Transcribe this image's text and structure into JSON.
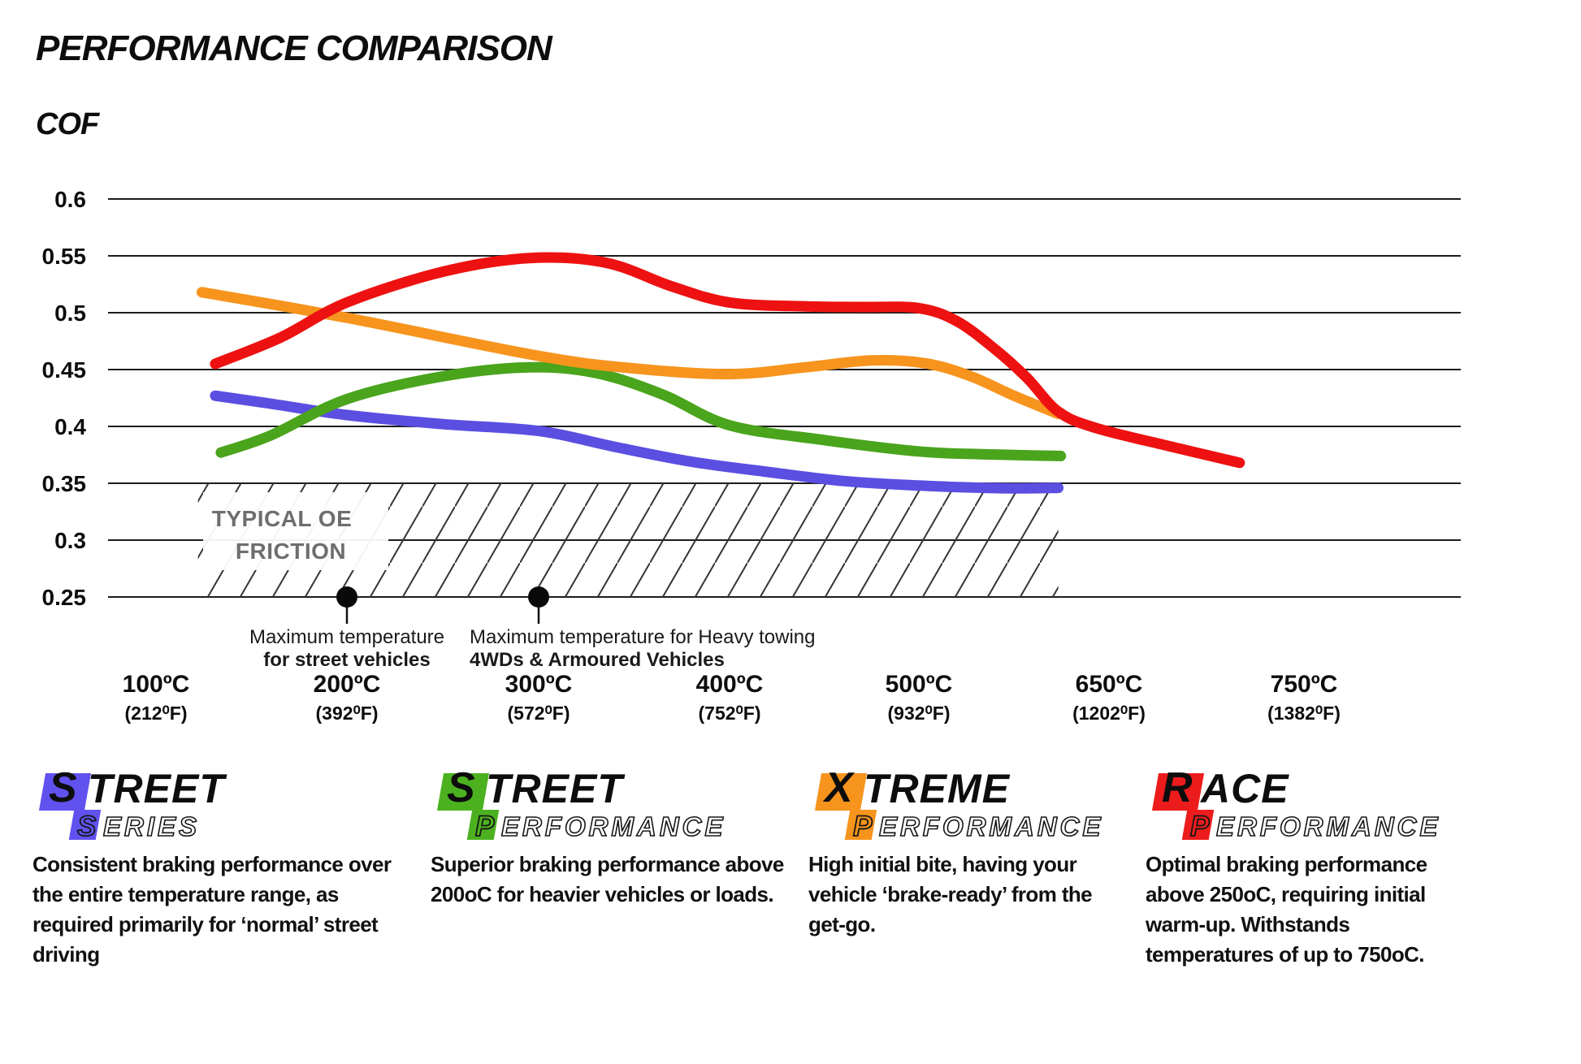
{
  "header": {
    "title": "PERFORMANCE COMPARISON",
    "axis_title": "COF"
  },
  "chart_data": {
    "type": "line",
    "title": "PERFORMANCE COMPARISON",
    "ylabel": "COF",
    "grid": true,
    "ylim": [
      0.25,
      0.6
    ],
    "legend_position": "bottom",
    "y_ticks": [
      {
        "label": "0.6",
        "value": 0.6
      },
      {
        "label": "0.55",
        "value": 0.55
      },
      {
        "label": "0.5",
        "value": 0.5
      },
      {
        "label": "0.45",
        "value": 0.45
      },
      {
        "label": "0.4",
        "value": 0.4
      },
      {
        "label": "0.35",
        "value": 0.35
      },
      {
        "label": "0.3",
        "value": 0.3
      },
      {
        "label": "0.25",
        "value": 0.25
      }
    ],
    "x_ticks": [
      {
        "label": "100ºC",
        "sub": "(212⁰F)",
        "temp": 100
      },
      {
        "label": "200ºC",
        "sub": "(392⁰F)",
        "temp": 200
      },
      {
        "label": "300ºC",
        "sub": "(572⁰F)",
        "temp": 300
      },
      {
        "label": "400ºC",
        "sub": "(752⁰F)",
        "temp": 400
      },
      {
        "label": "500ºC",
        "sub": "(932⁰F)",
        "temp": 500
      },
      {
        "label": "650ºC",
        "sub": "(1202⁰F)",
        "temp": 650
      },
      {
        "label": "750ºC",
        "sub": "(1382⁰F)",
        "temp": 750
      }
    ],
    "series": [
      {
        "name": "Street Series",
        "color": "#5a4fe0",
        "points": [
          [
            131,
            0.427
          ],
          [
            160,
            0.42
          ],
          [
            200,
            0.41
          ],
          [
            250,
            0.402
          ],
          [
            300,
            0.396
          ],
          [
            340,
            0.382
          ],
          [
            380,
            0.369
          ],
          [
            420,
            0.36
          ],
          [
            460,
            0.352
          ],
          [
            500,
            0.348
          ],
          [
            550,
            0.346
          ],
          [
            580,
            0.3455
          ],
          [
            610,
            0.346
          ]
        ]
      },
      {
        "name": "Street Performance",
        "color": "#4aa41c",
        "points": [
          [
            134,
            0.377
          ],
          [
            160,
            0.392
          ],
          [
            200,
            0.424
          ],
          [
            250,
            0.444
          ],
          [
            295,
            0.452
          ],
          [
            330,
            0.447
          ],
          [
            365,
            0.428
          ],
          [
            400,
            0.401
          ],
          [
            450,
            0.388
          ],
          [
            500,
            0.378
          ],
          [
            550,
            0.3755
          ],
          [
            612,
            0.374
          ]
        ]
      },
      {
        "name": "Xtreme Performance",
        "color": "#f7941e",
        "points": [
          [
            124,
            0.518
          ],
          [
            200,
            0.4955
          ],
          [
            300,
            0.462
          ],
          [
            350,
            0.451
          ],
          [
            400,
            0.446
          ],
          [
            440,
            0.452
          ],
          [
            475,
            0.458
          ],
          [
            505,
            0.4555
          ],
          [
            540,
            0.4445
          ],
          [
            575,
            0.427
          ],
          [
            610,
            0.411
          ]
        ]
      },
      {
        "name": "Race Performance",
        "color": "#ee1111",
        "points": [
          [
            131,
            0.455
          ],
          [
            165,
            0.478
          ],
          [
            200,
            0.509
          ],
          [
            250,
            0.536
          ],
          [
            295,
            0.548
          ],
          [
            335,
            0.544
          ],
          [
            370,
            0.523
          ],
          [
            400,
            0.509
          ],
          [
            440,
            0.5055
          ],
          [
            470,
            0.505
          ],
          [
            500,
            0.504
          ],
          [
            530,
            0.4925
          ],
          [
            560,
            0.468
          ],
          [
            585,
            0.443
          ],
          [
            610,
            0.413
          ],
          [
            640,
            0.3985
          ],
          [
            680,
            0.383
          ],
          [
            717,
            0.368
          ]
        ]
      }
    ],
    "oe_band": {
      "label_lines": [
        "TYPICAL OE",
        "FRICTION"
      ],
      "cof_range": [
        0.25,
        0.35
      ],
      "temp_range": [
        122,
        610
      ]
    },
    "annotations": [
      {
        "temp": 200,
        "cof": 0.25,
        "align": "center",
        "lines": [
          "Maximum temperature",
          "for street vehicles"
        ]
      },
      {
        "temp": 300,
        "cof": 0.25,
        "align": "left",
        "lines": [
          "Maximum temperature for Heavy towing",
          "4WDs & Armoured Vehicles"
        ]
      }
    ]
  },
  "legend": [
    {
      "name": "Street Series",
      "color": "#6152ef",
      "word1_first": "S",
      "word1_rest": "TREET",
      "word2_first": "S",
      "word2_rest": "ERIES",
      "description": "Consistent braking performance over the entire temperature range, as required primarily for ‘normal’ street driving"
    },
    {
      "name": "Street Performance",
      "color": "#4cb11f",
      "word1_first": "S",
      "word1_rest": "TREET",
      "word2_first": "P",
      "word2_rest": "ERFORMANCE",
      "description": "Superior braking performance above 200oC for heavier vehicles or loads."
    },
    {
      "name": "Xtreme Performance",
      "color": "#f7941d",
      "word1_first": "X",
      "word1_rest": "TREME",
      "word2_first": "P",
      "word2_rest": "ERFORMANCE",
      "description": "High initial bite, having your vehicle ‘brake-ready’ from the get-go."
    },
    {
      "name": "Race Performance",
      "color": "#ed1c1c",
      "word1_first": "R",
      "word1_rest": "ACE",
      "word2_first": "P",
      "word2_rest": "ERFORMANCE",
      "description": "Optimal braking performance above 250oC, requiring initial warm-up. Withstands temperatures of up to 750oC."
    }
  ]
}
